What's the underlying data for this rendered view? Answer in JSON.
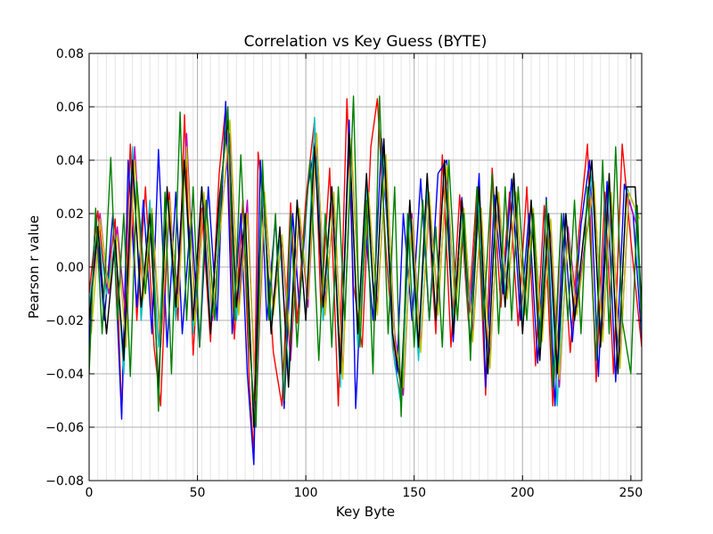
{
  "chart_data": {
    "type": "line",
    "title": "Correlation vs Key Guess (BYTE)",
    "xlabel": "Key Byte",
    "ylabel": "Pearson r value",
    "xlim": [
      0,
      255
    ],
    "ylim": [
      -0.08,
      0.08
    ],
    "grid": true,
    "minor_grid_x_every": 4,
    "legend": "none",
    "xticks": [
      {
        "value": 0,
        "label": "0"
      },
      {
        "value": 50,
        "label": "50"
      },
      {
        "value": 100,
        "label": "100"
      },
      {
        "value": 150,
        "label": "150"
      },
      {
        "value": 200,
        "label": "200"
      },
      {
        "value": 250,
        "label": "250"
      }
    ],
    "yticks": [
      {
        "value": -0.08,
        "label": "−0.08"
      },
      {
        "value": -0.06,
        "label": "−0.06"
      },
      {
        "value": -0.04,
        "label": "−0.04"
      },
      {
        "value": -0.02,
        "label": "−0.02"
      },
      {
        "value": 0.0,
        "label": "0.00"
      },
      {
        "value": 0.02,
        "label": "0.02"
      },
      {
        "value": 0.04,
        "label": "0.04"
      },
      {
        "value": 0.06,
        "label": "0.06"
      },
      {
        "value": 0.08,
        "label": "0.08"
      }
    ],
    "series": [
      {
        "color": "#ff0000",
        "x": [
          0,
          4,
          8,
          12,
          15,
          19,
          22,
          26,
          30,
          33,
          37,
          41,
          44,
          48,
          52,
          56,
          60,
          63,
          67,
          71,
          74,
          76,
          78,
          81,
          85,
          89,
          93,
          96,
          100,
          104,
          107,
          111,
          115,
          119,
          122,
          126,
          130,
          133,
          137,
          141,
          144,
          148,
          152,
          156,
          160,
          163,
          167,
          171,
          175,
          179,
          183,
          186,
          190,
          194,
          198,
          202,
          206,
          210,
          214,
          218,
          222,
          226,
          230,
          234,
          238,
          242,
          246,
          250,
          255
        ],
        "y": [
          -0.01,
          0.021,
          -0.009,
          0.018,
          -0.055,
          0.046,
          -0.02,
          0.03,
          -0.03,
          -0.052,
          0.028,
          -0.02,
          0.057,
          -0.033,
          0.022,
          -0.028,
          0.035,
          0.06,
          -0.027,
          0.025,
          -0.045,
          -0.07,
          0.043,
          0.019,
          -0.032,
          -0.052,
          0.024,
          -0.021,
          0.025,
          0.055,
          -0.017,
          0.037,
          -0.052,
          0.063,
          -0.007,
          -0.03,
          0.045,
          0.063,
          0.006,
          -0.036,
          -0.05,
          0.024,
          -0.031,
          0.028,
          -0.025,
          0.042,
          -0.03,
          0.027,
          -0.02,
          0.03,
          -0.048,
          0.037,
          -0.015,
          0.028,
          -0.022,
          0.03,
          -0.037,
          0.023,
          -0.052,
          0.019,
          -0.032,
          0.013,
          0.046,
          -0.043,
          0.028,
          -0.04,
          0.046,
          0.01,
          -0.03
        ]
      },
      {
        "color": "#0000ff",
        "x": [
          0,
          3,
          7,
          11,
          15,
          18,
          22,
          25,
          29,
          32,
          36,
          40,
          43,
          47,
          51,
          55,
          59,
          63,
          66,
          70,
          73,
          76,
          79,
          82,
          86,
          90,
          94,
          97,
          101,
          105,
          108,
          112,
          116,
          120,
          123,
          127,
          131,
          135,
          138,
          142,
          145,
          149,
          153,
          157,
          161,
          165,
          168,
          172,
          176,
          180,
          183,
          187,
          191,
          195,
          199,
          203,
          207,
          211,
          215,
          219,
          223,
          227,
          231,
          235,
          239,
          243,
          247,
          251,
          255
        ],
        "y": [
          -0.03,
          0.02,
          -0.02,
          0.02,
          -0.057,
          0.04,
          -0.015,
          0.025,
          -0.025,
          0.044,
          -0.03,
          0.028,
          -0.025,
          0.02,
          -0.03,
          0.03,
          -0.02,
          0.062,
          -0.025,
          0.02,
          -0.04,
          -0.074,
          0.04,
          -0.02,
          0.018,
          -0.053,
          0.02,
          -0.015,
          0.03,
          0.05,
          -0.02,
          0.03,
          -0.04,
          0.055,
          -0.053,
          0.02,
          -0.02,
          0.048,
          0.01,
          -0.04,
          0.02,
          -0.02,
          0.033,
          -0.02,
          0.035,
          0.04,
          -0.028,
          0.026,
          -0.017,
          0.035,
          -0.045,
          0.027,
          -0.01,
          0.033,
          -0.02,
          0.02,
          -0.036,
          0.026,
          -0.052,
          0.02,
          -0.028,
          0.016,
          0.04,
          -0.041,
          0.032,
          -0.043,
          0.031,
          0.02,
          -0.027
        ]
      },
      {
        "color": "#00bfbf",
        "x": [
          0,
          4,
          8,
          12,
          16,
          20,
          24,
          28,
          32,
          36,
          40,
          44,
          48,
          52,
          56,
          60,
          64,
          68,
          72,
          76,
          80,
          84,
          88,
          92,
          96,
          100,
          104,
          108,
          112,
          116,
          120,
          124,
          128,
          132,
          136,
          140,
          144,
          148,
          152,
          156,
          160,
          164,
          168,
          172,
          176,
          180,
          184,
          188,
          192,
          196,
          200,
          204,
          208,
          212,
          216,
          220,
          224,
          228,
          232,
          236,
          240,
          244,
          248,
          252,
          255
        ],
        "y": [
          -0.015,
          0.015,
          -0.01,
          0.01,
          -0.04,
          0.045,
          -0.02,
          0.025,
          -0.03,
          0.028,
          -0.02,
          0.04,
          -0.025,
          0.03,
          -0.02,
          0.02,
          0.06,
          -0.02,
          0.02,
          -0.06,
          0.03,
          -0.02,
          0.01,
          -0.04,
          0.025,
          -0.02,
          0.056,
          -0.02,
          0.03,
          -0.045,
          0.05,
          -0.03,
          0.03,
          -0.02,
          0.045,
          -0.03,
          -0.052,
          0.02,
          -0.035,
          0.03,
          -0.02,
          0.04,
          -0.02,
          0.02,
          -0.03,
          0.025,
          -0.04,
          0.03,
          -0.01,
          0.03,
          -0.02,
          0.025,
          -0.03,
          0.02,
          -0.052,
          0.02,
          -0.02,
          0.01,
          0.035,
          -0.03,
          0.03,
          -0.04,
          0.03,
          0.022,
          -0.02
        ]
      },
      {
        "color": "#bf00bf",
        "x": [
          0,
          5,
          9,
          13,
          17,
          21,
          25,
          29,
          33,
          37,
          41,
          45,
          49,
          53,
          57,
          61,
          65,
          69,
          73,
          77,
          81,
          85,
          89,
          93,
          97,
          101,
          105,
          109,
          113,
          117,
          121,
          125,
          129,
          133,
          137,
          141,
          145,
          149,
          153,
          157,
          161,
          165,
          169,
          173,
          177,
          181,
          185,
          189,
          193,
          197,
          201,
          205,
          209,
          213,
          217,
          221,
          225,
          229,
          233,
          237,
          241,
          245,
          249,
          253
        ],
        "y": [
          -0.02,
          0.02,
          -0.01,
          0.015,
          -0.02,
          0.045,
          -0.01,
          0.02,
          -0.03,
          0.02,
          -0.01,
          0.05,
          -0.02,
          0.025,
          -0.02,
          0.02,
          0.05,
          -0.015,
          0.025,
          -0.055,
          0.025,
          -0.015,
          0.01,
          -0.035,
          0.02,
          -0.015,
          0.048,
          -0.015,
          0.025,
          -0.04,
          0.045,
          -0.02,
          0.025,
          -0.015,
          0.04,
          -0.025,
          -0.048,
          0.02,
          -0.03,
          0.025,
          -0.015,
          0.035,
          -0.015,
          0.02,
          -0.025,
          0.02,
          -0.035,
          0.025,
          -0.01,
          0.025,
          -0.015,
          0.02,
          -0.025,
          0.015,
          -0.045,
          0.015,
          -0.015,
          0.01,
          0.03,
          -0.025,
          0.025,
          -0.035,
          0.025,
          0.015
        ]
      },
      {
        "color": "#bfbf00",
        "x": [
          1,
          5,
          9,
          13,
          17,
          21,
          25,
          29,
          33,
          37,
          41,
          45,
          49,
          53,
          57,
          61,
          65,
          69,
          73,
          77,
          81,
          85,
          89,
          93,
          97,
          101,
          105,
          109,
          113,
          117,
          121,
          125,
          129,
          133,
          137,
          141,
          145,
          149,
          153,
          157,
          161,
          165,
          169,
          173,
          177,
          181,
          185,
          189,
          193,
          197,
          201,
          205,
          209,
          213,
          217,
          221,
          225,
          229,
          233,
          237,
          241,
          245,
          249,
          254
        ],
        "y": [
          -0.025,
          0.018,
          -0.008,
          0.012,
          -0.03,
          0.04,
          -0.012,
          0.022,
          -0.028,
          0.025,
          -0.015,
          0.045,
          -0.022,
          0.028,
          -0.018,
          0.018,
          0.055,
          -0.018,
          0.02,
          -0.05,
          0.028,
          -0.018,
          0.012,
          -0.03,
          0.022,
          -0.012,
          0.05,
          -0.018,
          0.028,
          -0.042,
          0.048,
          -0.022,
          0.028,
          -0.018,
          0.042,
          -0.028,
          -0.045,
          0.018,
          -0.032,
          0.028,
          -0.018,
          0.038,
          -0.018,
          0.022,
          -0.028,
          0.022,
          -0.038,
          0.028,
          -0.012,
          0.028,
          -0.018,
          0.022,
          -0.028,
          0.018,
          -0.042,
          0.012,
          -0.018,
          0.008,
          0.032,
          -0.028,
          0.028,
          -0.038,
          0.028,
          0.018
        ]
      },
      {
        "color": "#000000",
        "x": [
          0,
          4,
          8,
          12,
          16,
          20,
          24,
          28,
          32,
          36,
          40,
          44,
          48,
          52,
          56,
          60,
          64,
          68,
          72,
          76,
          80,
          84,
          88,
          92,
          96,
          100,
          104,
          108,
          112,
          116,
          120,
          124,
          128,
          132,
          136,
          140,
          144,
          148,
          152,
          156,
          160,
          164,
          168,
          172,
          176,
          180,
          184,
          188,
          192,
          196,
          200,
          204,
          208,
          212,
          216,
          220,
          224,
          228,
          232,
          236,
          240,
          244,
          248,
          252,
          255
        ],
        "y": [
          -0.02,
          0.015,
          -0.025,
          0.01,
          -0.035,
          0.04,
          -0.015,
          0.02,
          -0.045,
          0.03,
          -0.015,
          0.04,
          -0.02,
          0.03,
          -0.025,
          0.025,
          0.055,
          -0.015,
          0.02,
          -0.06,
          0.035,
          -0.025,
          0.015,
          -0.045,
          0.025,
          -0.02,
          0.045,
          -0.015,
          0.03,
          -0.04,
          0.05,
          -0.025,
          0.035,
          -0.02,
          0.048,
          -0.025,
          -0.045,
          0.025,
          -0.03,
          0.035,
          -0.02,
          0.04,
          -0.025,
          0.025,
          -0.03,
          0.03,
          -0.04,
          0.03,
          -0.015,
          0.035,
          -0.025,
          0.025,
          -0.035,
          0.02,
          -0.04,
          0.02,
          -0.02,
          0.01,
          0.04,
          -0.03,
          0.035,
          -0.04,
          0.03,
          0.03,
          -0.015
        ]
      },
      {
        "color": "#008000",
        "x": [
          0,
          3,
          6,
          10,
          13,
          16,
          19,
          22,
          26,
          29,
          32,
          35,
          38,
          42,
          45,
          48,
          51,
          54,
          58,
          61,
          64,
          67,
          70,
          74,
          77,
          80,
          83,
          86,
          90,
          93,
          96,
          99,
          102,
          106,
          109,
          112,
          115,
          118,
          122,
          125,
          128,
          131,
          134,
          138,
          141,
          144,
          147,
          150,
          154,
          157,
          160,
          163,
          166,
          170,
          173,
          176,
          179,
          182,
          186,
          189,
          192,
          195,
          198,
          202,
          205,
          208,
          211,
          214,
          218,
          221,
          224,
          227,
          230,
          234,
          237,
          240,
          243,
          246,
          250,
          253,
          255
        ],
        "y": [
          -0.04,
          0.022,
          -0.025,
          0.041,
          -0.02,
          0.02,
          -0.041,
          0.032,
          -0.01,
          0.02,
          -0.054,
          0.028,
          -0.04,
          0.058,
          -0.02,
          0.03,
          -0.03,
          0.025,
          -0.02,
          0.03,
          0.06,
          -0.02,
          0.042,
          -0.03,
          -0.06,
          0.04,
          -0.02,
          0.02,
          -0.05,
          0.02,
          -0.03,
          0.01,
          0.04,
          -0.035,
          0.02,
          -0.03,
          0.03,
          -0.02,
          0.064,
          -0.03,
          0.025,
          -0.04,
          0.064,
          -0.025,
          0.03,
          -0.056,
          0.02,
          -0.03,
          0.025,
          -0.02,
          0.015,
          -0.03,
          0.04,
          -0.02,
          0.02,
          -0.035,
          0.03,
          -0.02,
          0.035,
          -0.025,
          0.03,
          -0.02,
          0.03,
          -0.02,
          0.02,
          -0.03,
          0.025,
          -0.045,
          0.02,
          -0.02,
          0.025,
          -0.025,
          0.03,
          -0.035,
          0.04,
          -0.025,
          0.045,
          -0.02,
          -0.04,
          0.023,
          -0.025
        ]
      }
    ]
  }
}
